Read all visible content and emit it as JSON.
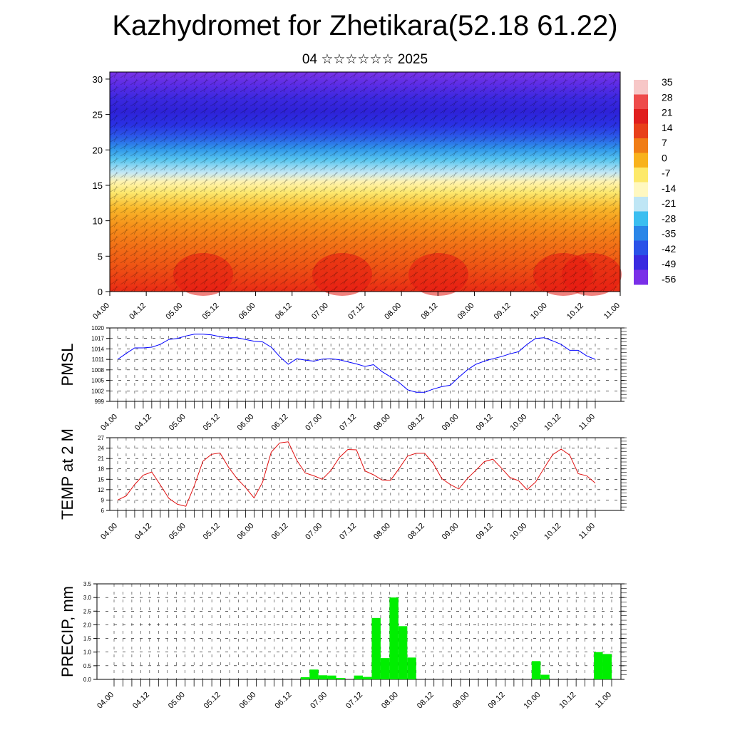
{
  "header": {
    "title": "Kazhydromet for Zhetikara(52.18 61.22)",
    "subtitle": "04 ☆☆☆☆☆☆ 2025"
  },
  "chart_data": [
    {
      "type": "heatmap",
      "ylim": [
        0,
        31
      ],
      "yticks": [
        0,
        5,
        10,
        15,
        20,
        25,
        30
      ],
      "xticks": [
        "04.00",
        "04.12",
        "05.00",
        "05.12",
        "06.00",
        "06.12",
        "07.00",
        "07.12",
        "08.00",
        "08.12",
        "09.00",
        "09.12",
        "10.00",
        "10.12",
        "11.00"
      ],
      "colorbar_labels": [
        "35",
        "28",
        "21",
        "14",
        "7",
        "0",
        "-7",
        "-14",
        "-21",
        "-28",
        "-35",
        "-42",
        "-49",
        "-56"
      ],
      "colorbar_colors": [
        "#f7c7c7",
        "#ee4b4b",
        "#e01e1e",
        "#e8401a",
        "#f07d16",
        "#f8b21c",
        "#fde96a",
        "#fff8c0",
        "#bfe6f5",
        "#3bbef0",
        "#2a86e8",
        "#2a52e8",
        "#3a2ae0",
        "#7a2fe8"
      ],
      "grid": false
    },
    {
      "type": "line",
      "ylabel": "PMSL",
      "ylim": [
        999,
        1020
      ],
      "yticks": [
        999,
        1002,
        1005,
        1008,
        1011,
        1014,
        1017,
        1020
      ],
      "xticks": [
        "04.00",
        "04.12",
        "05.00",
        "05.12",
        "06.00",
        "06.12",
        "07.00",
        "07.12",
        "08.00",
        "08.12",
        "09.00",
        "09.12",
        "10.00",
        "10.12",
        "11.00"
      ],
      "color": "#0000ff",
      "values": [
        1011,
        1012.7,
        1014.3,
        1014.3,
        1014.5,
        1015.3,
        1016.7,
        1017,
        1017.7,
        1018.2,
        1018.2,
        1018,
        1017.5,
        1017.2,
        1017.2,
        1016.7,
        1016.2,
        1016,
        1014.5,
        1011.8,
        1009.6,
        1011.2,
        1010.8,
        1010.5,
        1011.1,
        1011.2,
        1010.9,
        1010.3,
        1009.7,
        1009,
        1009.5,
        1007.5,
        1006,
        1004.4,
        1002.3,
        1001.6,
        1001.6,
        1002.5,
        1003.2,
        1003.6,
        1005.9,
        1008,
        1009.6,
        1010.5,
        1011.2,
        1011.8,
        1012.6,
        1013.2,
        1015.3,
        1017,
        1017.2,
        1016.3,
        1015.3,
        1013.6,
        1013.6,
        1012,
        1011
      ]
    },
    {
      "type": "line",
      "ylabel": "TEMP at 2 M",
      "ylim": [
        6,
        27
      ],
      "yticks": [
        6,
        9,
        12,
        15,
        18,
        21,
        24,
        27
      ],
      "xticks": [
        "04.00",
        "04.12",
        "05.00",
        "05.12",
        "06.00",
        "06.12",
        "07.00",
        "07.12",
        "08.00",
        "08.12",
        "09.00",
        "09.12",
        "10.00",
        "10.12",
        "11.00"
      ],
      "color": "#e01010",
      "values": [
        9,
        10.2,
        13.5,
        16.2,
        17.1,
        13.4,
        9.5,
        7.8,
        7.2,
        13.2,
        20.2,
        22.2,
        22.6,
        18.5,
        15.2,
        12.6,
        9.6,
        14.2,
        22.8,
        25.5,
        25.8,
        20.5,
        16.8,
        16,
        15,
        17.5,
        21.3,
        23.6,
        23.5,
        17.4,
        16.3,
        14.8,
        14.7,
        18.1,
        21.7,
        22.5,
        22.5,
        19.6,
        15.2,
        13.5,
        12.2,
        15.2,
        17.6,
        20.1,
        20.8,
        18.2,
        15.5,
        14.6,
        12,
        14.2,
        18.2,
        22.1,
        23.7,
        22,
        16.6,
        16,
        13.9
      ]
    },
    {
      "type": "bar",
      "ylabel": "PRECIP, mm",
      "ylim": [
        0,
        3.5
      ],
      "yticks": [
        "0.0",
        "0.5",
        "1.0",
        "1.5",
        "2.0",
        "2.5",
        "3.0",
        "3.5"
      ],
      "xticks": [
        "04.00",
        "04.12",
        "05.00",
        "05.12",
        "06.00",
        "06.12",
        "07.00",
        "07.12",
        "08.00",
        "08.12",
        "09.00",
        "09.12",
        "10.00",
        "10.12",
        "11.00"
      ],
      "color": "#00ee00",
      "bars": [
        {
          "t": 21.5,
          "v": 0.08
        },
        {
          "t": 22.5,
          "v": 0.36
        },
        {
          "t": 23.5,
          "v": 0.15
        },
        {
          "t": 24.5,
          "v": 0.14
        },
        {
          "t": 25.5,
          "v": 0.05
        },
        {
          "t": 27.5,
          "v": 0.14
        },
        {
          "t": 28.5,
          "v": 0.09
        },
        {
          "t": 29.5,
          "v": 2.25
        },
        {
          "t": 30.5,
          "v": 0.78
        },
        {
          "t": 31.5,
          "v": 3.0
        },
        {
          "t": 32.5,
          "v": 1.95
        },
        {
          "t": 33.5,
          "v": 0.8
        },
        {
          "t": 47.5,
          "v": 0.67
        },
        {
          "t": 48.5,
          "v": 0.17
        },
        {
          "t": 54.5,
          "v": 1.0
        },
        {
          "t": 55.5,
          "v": 0.93
        }
      ]
    }
  ]
}
